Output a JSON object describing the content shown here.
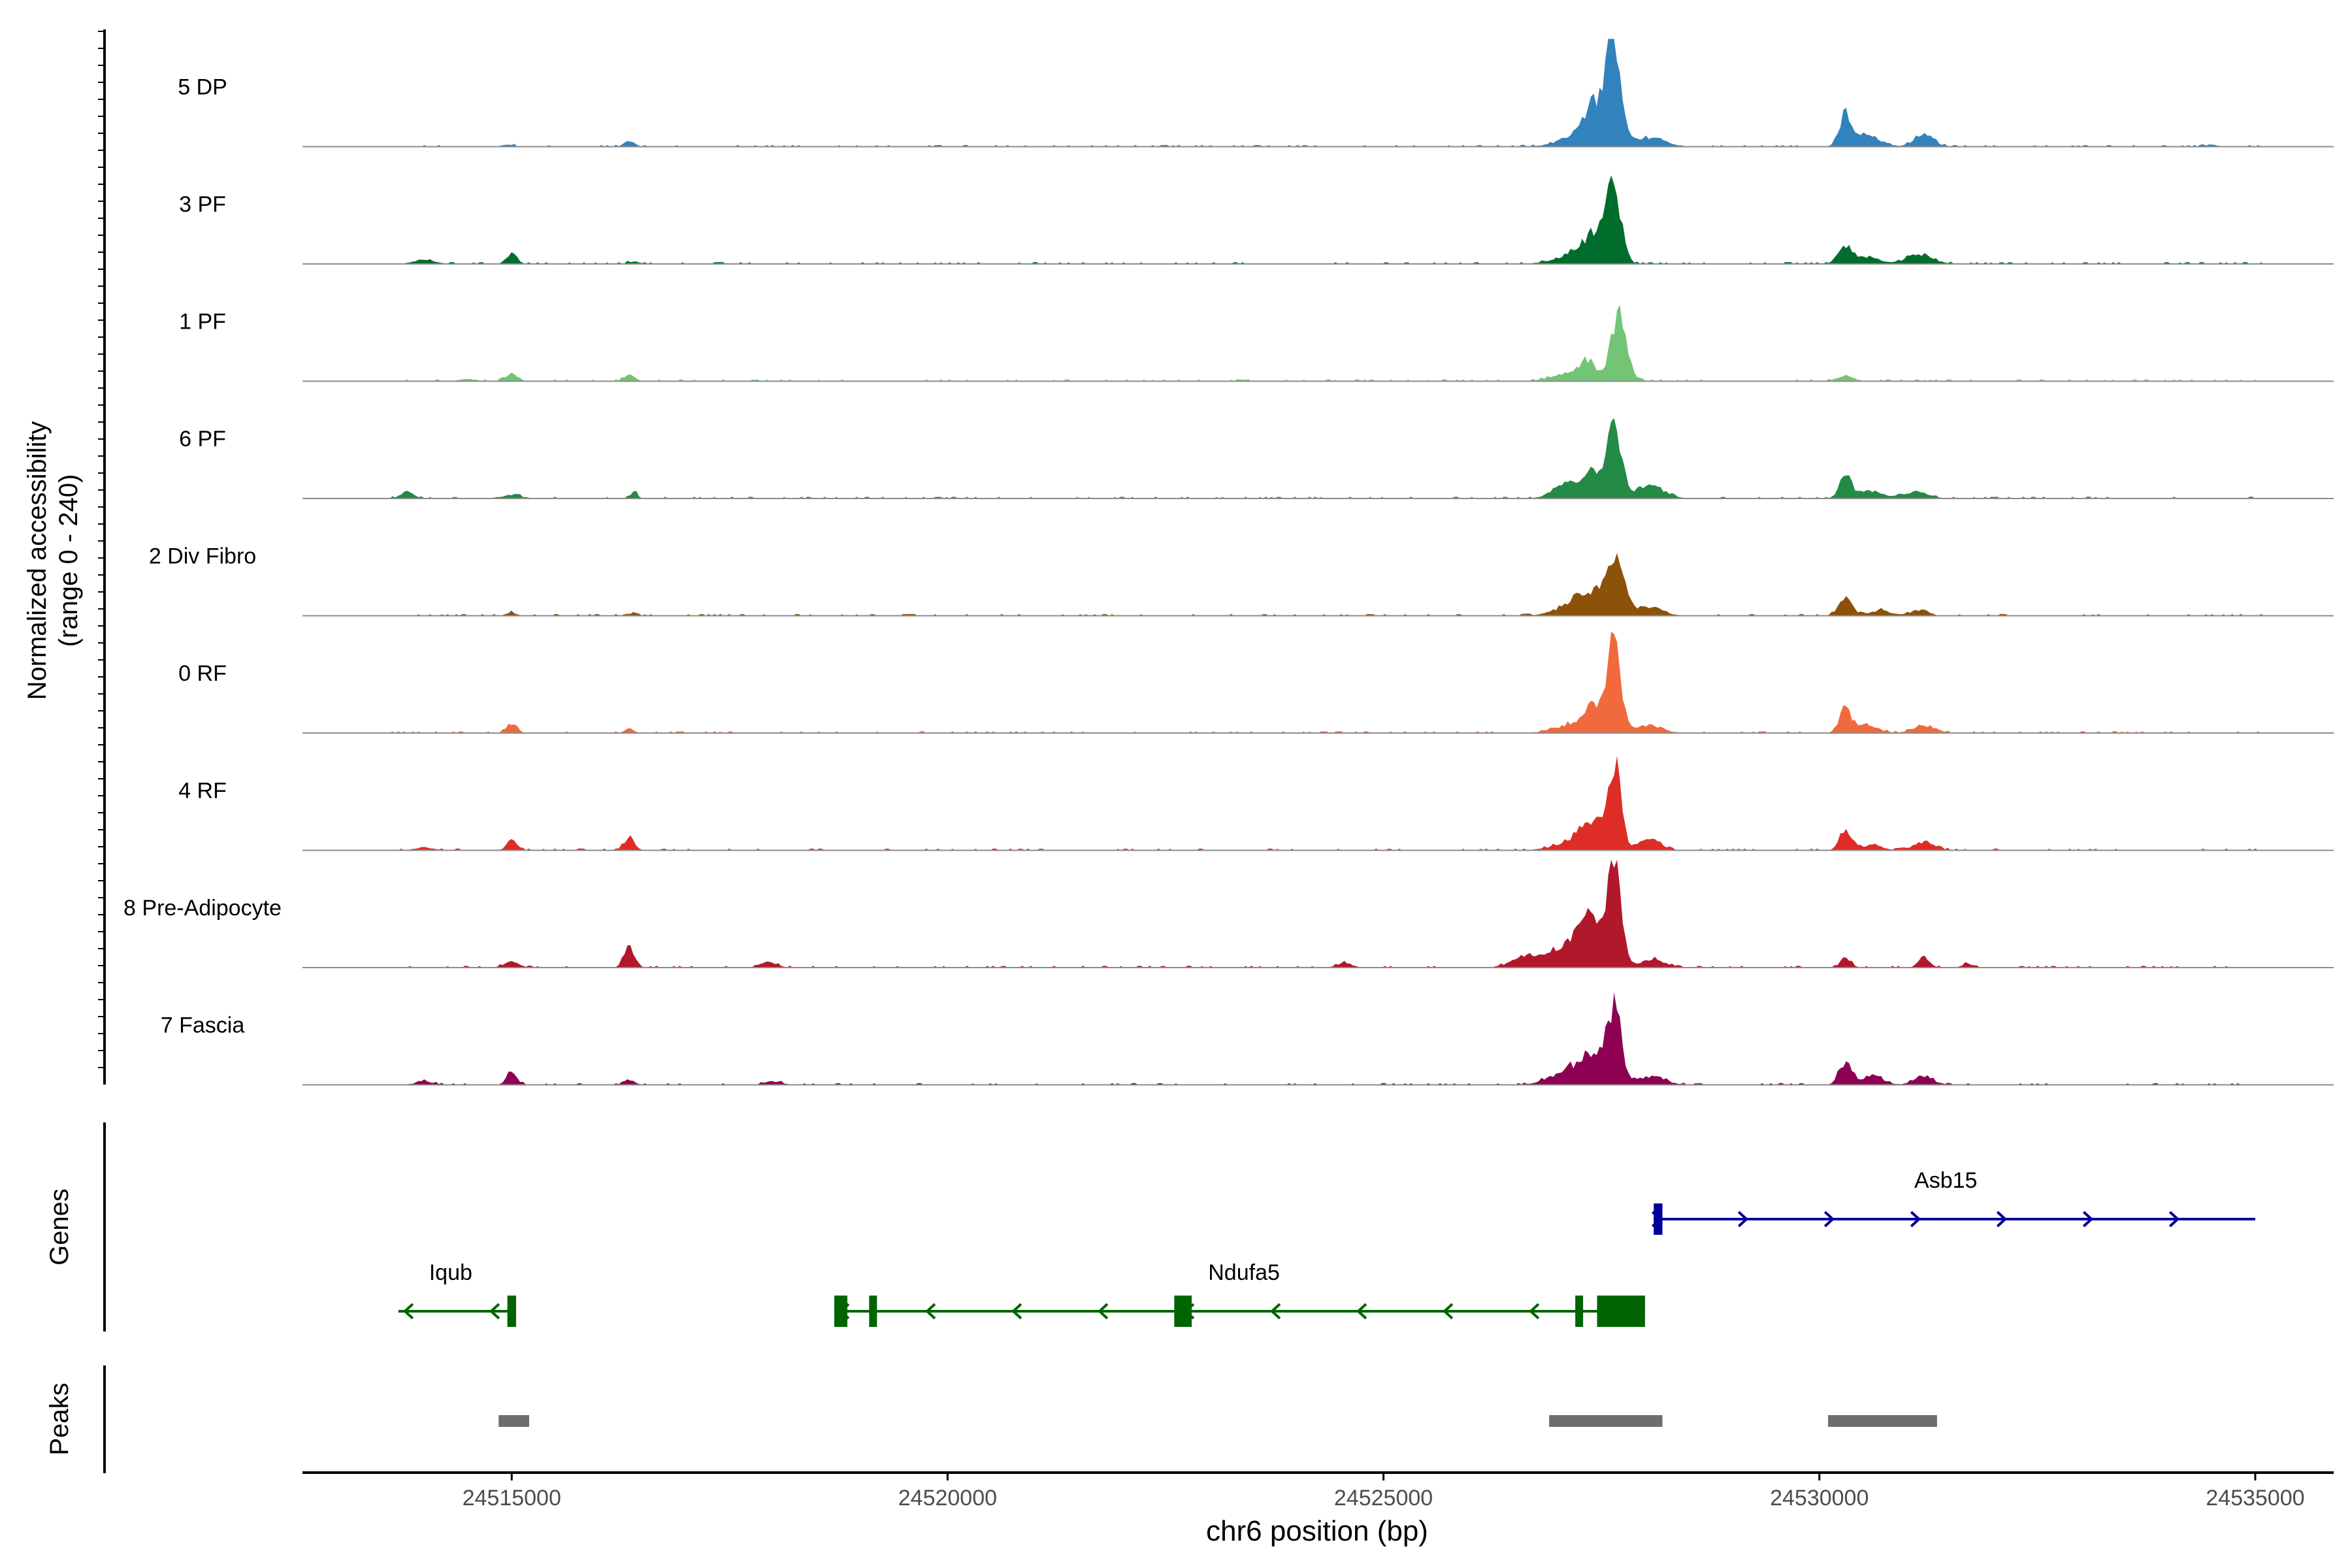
{
  "chart_data": {
    "type": "area",
    "title": "",
    "ylabel_line1": "Normalized accessibility",
    "ylabel_line2": "(range 0 - 240)",
    "xlabel": "chr6 position (bp)",
    "xlim": [
      24512600,
      24535900
    ],
    "ylim": [
      0,
      240
    ],
    "x_ticks": [
      24515000,
      24520000,
      24525000,
      24530000,
      24535000
    ],
    "x_tick_labels": [
      "24515000",
      "24520000",
      "24525000",
      "24530000",
      "24535000"
    ],
    "genes_label": "Genes",
    "peaks_label": "Peaks",
    "tracks": [
      {
        "name": "5 DP",
        "color": "#3182bd",
        "peaks": [
          [
            24527650,
            230,
            80
          ],
          [
            24527450,
            90,
            140
          ],
          [
            24527250,
            25,
            220
          ],
          [
            24528050,
            20,
            180
          ],
          [
            24530300,
            75,
            70
          ],
          [
            24530550,
            25,
            150
          ],
          [
            24531200,
            28,
            110
          ],
          [
            24516350,
            12,
            60
          ],
          [
            24514950,
            5,
            60
          ],
          [
            24534500,
            5,
            60
          ]
        ]
      },
      {
        "name": "3 PF",
        "color": "#006d2c",
        "peaks": [
          [
            24527650,
            160,
            80
          ],
          [
            24527450,
            70,
            140
          ],
          [
            24527150,
            20,
            200
          ],
          [
            24530300,
            40,
            80
          ],
          [
            24530550,
            15,
            150
          ],
          [
            24531150,
            22,
            150
          ],
          [
            24515000,
            25,
            60
          ],
          [
            24514000,
            10,
            120
          ],
          [
            24516400,
            6,
            60
          ]
        ]
      },
      {
        "name": "1 PF",
        "color": "#74c476",
        "peaks": [
          [
            24527700,
            150,
            90
          ],
          [
            24527350,
            40,
            90
          ],
          [
            24527150,
            18,
            200
          ],
          [
            24515000,
            18,
            70
          ],
          [
            24516350,
            14,
            60
          ],
          [
            24530300,
            14,
            90
          ],
          [
            24514500,
            5,
            100
          ]
        ]
      },
      {
        "name": "6 PF",
        "color": "#238b45",
        "peaks": [
          [
            24527650,
            165,
            80
          ],
          [
            24527400,
            60,
            120
          ],
          [
            24527100,
            35,
            150
          ],
          [
            24528050,
            30,
            160
          ],
          [
            24530300,
            50,
            70
          ],
          [
            24530600,
            18,
            130
          ],
          [
            24531100,
            15,
            150
          ],
          [
            24513800,
            18,
            70
          ],
          [
            24516400,
            15,
            40
          ],
          [
            24515000,
            8,
            120
          ]
        ]
      },
      {
        "name": "2 Div Fibro",
        "color": "#8c510a",
        "peaks": [
          [
            24527650,
            145,
            100
          ],
          [
            24527350,
            45,
            140
          ],
          [
            24527150,
            20,
            200
          ],
          [
            24528050,
            22,
            150
          ],
          [
            24530300,
            40,
            80
          ],
          [
            24530700,
            12,
            120
          ],
          [
            24531150,
            14,
            100
          ],
          [
            24515000,
            7,
            60
          ],
          [
            24516350,
            5,
            60
          ]
        ]
      },
      {
        "name": "0 RF",
        "color": "#f16a3e",
        "peaks": [
          [
            24527650,
            200,
            75
          ],
          [
            24527450,
            60,
            130
          ],
          [
            24527150,
            18,
            200
          ],
          [
            24528050,
            18,
            150
          ],
          [
            24530300,
            55,
            70
          ],
          [
            24530550,
            20,
            120
          ],
          [
            24531200,
            18,
            130
          ],
          [
            24515000,
            22,
            60
          ],
          [
            24516350,
            12,
            50
          ]
        ]
      },
      {
        "name": "4 RF",
        "color": "#de2d26",
        "peaks": [
          [
            24527650,
            190,
            75
          ],
          [
            24527400,
            65,
            130
          ],
          [
            24527150,
            18,
            200
          ],
          [
            24528050,
            25,
            130
          ],
          [
            24530300,
            45,
            70
          ],
          [
            24530600,
            12,
            120
          ],
          [
            24531200,
            20,
            120
          ],
          [
            24515000,
            22,
            60
          ],
          [
            24516350,
            30,
            60
          ],
          [
            24514000,
            7,
            100
          ]
        ]
      },
      {
        "name": "8 Pre-Adipocyte",
        "color": "#b2182b",
        "peaks": [
          [
            24527650,
            240,
            80
          ],
          [
            24527350,
            110,
            140
          ],
          [
            24527000,
            40,
            200
          ],
          [
            24526600,
            22,
            150
          ],
          [
            24528100,
            20,
            130
          ],
          [
            24516350,
            50,
            60
          ],
          [
            24515000,
            15,
            80
          ],
          [
            24517950,
            14,
            90
          ],
          [
            24530300,
            22,
            60
          ],
          [
            24531200,
            25,
            60
          ],
          [
            24524550,
            10,
            90
          ],
          [
            24531700,
            10,
            60
          ]
        ]
      },
      {
        "name": "7 Fascia",
        "color": "#8e0152",
        "peaks": [
          [
            24527650,
            170,
            80
          ],
          [
            24527400,
            70,
            140
          ],
          [
            24527100,
            30,
            200
          ],
          [
            24528050,
            20,
            170
          ],
          [
            24530300,
            55,
            70
          ],
          [
            24530600,
            20,
            130
          ],
          [
            24531200,
            20,
            110
          ],
          [
            24515000,
            30,
            60
          ],
          [
            24516350,
            12,
            60
          ],
          [
            24514000,
            8,
            100
          ],
          [
            24518000,
            8,
            100
          ]
        ]
      }
    ],
    "genes": [
      {
        "name": "Iqub",
        "strand": "-",
        "color": "#006400",
        "row": 2,
        "start": 24513700,
        "end": 24515050,
        "label_x": 24514300,
        "exons": [
          [
            24514950,
            24515050
          ]
        ],
        "thick": []
      },
      {
        "name": "Ndufa5",
        "strand": "-",
        "color": "#006400",
        "row": 2,
        "start": 24518700,
        "end": 24528000,
        "label_x": 24523400,
        "exons": [
          [
            24518700,
            24518850
          ],
          [
            24519100,
            24519150
          ],
          [
            24522600,
            24522800
          ],
          [
            24527200,
            24527250
          ]
        ],
        "thick": [
          [
            24527450,
            24528000
          ]
        ]
      },
      {
        "name": "Asb15",
        "strand": "+",
        "color": "#000099",
        "row": 1,
        "start": 24528100,
        "end": 24535000,
        "label_x": 24531450,
        "exons": [
          [
            24528100,
            24528200
          ]
        ],
        "thick": []
      }
    ],
    "peak_regions": [
      [
        24514850,
        24515200
      ],
      [
        24526900,
        24528200
      ],
      [
        24530100,
        24531350
      ]
    ]
  }
}
